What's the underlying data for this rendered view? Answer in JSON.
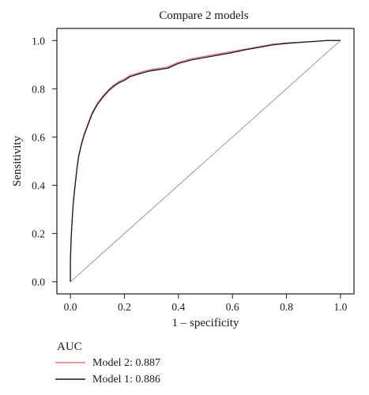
{
  "chart_data": {
    "type": "line",
    "title": "Compare 2 models",
    "xlabel": "1 – specificity",
    "ylabel": "Sensitivity",
    "xlim": [
      -0.05,
      1.05
    ],
    "ylim": [
      -0.05,
      1.05
    ],
    "x_ticks": [
      "0.0",
      "0.2",
      "0.4",
      "0.6",
      "0.8",
      "1.0"
    ],
    "y_ticks": [
      "0.0",
      "0.2",
      "0.4",
      "0.6",
      "0.8",
      "1.0"
    ],
    "grid": false,
    "reference_line": {
      "x": [
        0,
        1
      ],
      "y": [
        0,
        1
      ],
      "color": "#999999"
    },
    "legend": {
      "title": "AUC",
      "placement": "below-left"
    },
    "series": [
      {
        "name": "Model 2: 0.887",
        "color": "#e8747c",
        "x": [
          0,
          0,
          0.003,
          0.006,
          0.01,
          0.015,
          0.02,
          0.025,
          0.03,
          0.04,
          0.05,
          0.06,
          0.07,
          0.08,
          0.09,
          0.1,
          0.12,
          0.14,
          0.16,
          0.18,
          0.2,
          0.22,
          0.25,
          0.28,
          0.3,
          0.33,
          0.36,
          0.4,
          0.45,
          0.5,
          0.55,
          0.6,
          0.65,
          0.7,
          0.75,
          0.8,
          0.85,
          0.9,
          0.95,
          1.0
        ],
        "y": [
          0,
          0.09,
          0.19,
          0.25,
          0.32,
          0.38,
          0.43,
          0.48,
          0.52,
          0.57,
          0.61,
          0.64,
          0.67,
          0.7,
          0.72,
          0.74,
          0.77,
          0.795,
          0.815,
          0.83,
          0.84,
          0.855,
          0.865,
          0.875,
          0.88,
          0.885,
          0.89,
          0.91,
          0.925,
          0.935,
          0.945,
          0.955,
          0.965,
          0.975,
          0.985,
          0.99,
          0.993,
          0.996,
          1.0,
          1.0
        ]
      },
      {
        "name": "Model 1: 0.886",
        "color": "#1a1a1a",
        "x": [
          0,
          0,
          0.003,
          0.006,
          0.01,
          0.015,
          0.02,
          0.025,
          0.03,
          0.04,
          0.05,
          0.06,
          0.07,
          0.08,
          0.09,
          0.1,
          0.12,
          0.14,
          0.16,
          0.18,
          0.2,
          0.22,
          0.25,
          0.28,
          0.3,
          0.33,
          0.36,
          0.4,
          0.45,
          0.5,
          0.55,
          0.6,
          0.65,
          0.7,
          0.75,
          0.8,
          0.85,
          0.9,
          0.95,
          1.0
        ],
        "y": [
          0,
          0.085,
          0.185,
          0.245,
          0.315,
          0.375,
          0.425,
          0.475,
          0.515,
          0.565,
          0.605,
          0.635,
          0.665,
          0.695,
          0.715,
          0.735,
          0.765,
          0.79,
          0.81,
          0.825,
          0.835,
          0.85,
          0.86,
          0.87,
          0.875,
          0.88,
          0.885,
          0.905,
          0.92,
          0.93,
          0.94,
          0.95,
          0.962,
          0.972,
          0.982,
          0.988,
          0.992,
          0.996,
          1.0,
          1.0
        ]
      }
    ]
  }
}
